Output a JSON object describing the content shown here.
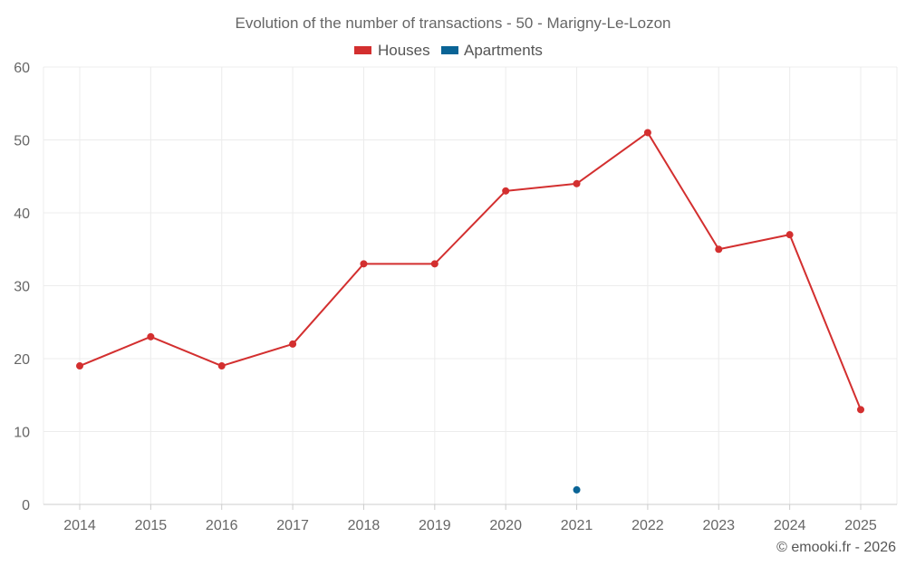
{
  "chart_data": {
    "type": "line",
    "title": "Evolution of the number of transactions - 50 - Marigny-Le-Lozon",
    "categories": [
      "2014",
      "2015",
      "2016",
      "2017",
      "2018",
      "2019",
      "2020",
      "2021",
      "2022",
      "2023",
      "2024",
      "2025"
    ],
    "series": [
      {
        "name": "Houses",
        "color": "#d32f2f",
        "values": [
          19,
          23,
          19,
          22,
          33,
          33,
          43,
          44,
          51,
          35,
          37,
          13
        ]
      },
      {
        "name": "Apartments",
        "color": "#0a6496",
        "values": [
          null,
          null,
          null,
          null,
          null,
          null,
          null,
          2,
          null,
          null,
          null,
          null
        ]
      }
    ],
    "yticks": [
      "0",
      "10",
      "20",
      "30",
      "40",
      "50",
      "60"
    ],
    "ylim": [
      0,
      60
    ],
    "xlabel": "",
    "ylabel": "",
    "grid": true,
    "legend_position": "top-center"
  },
  "footer": "© emooki.fr - 2026"
}
